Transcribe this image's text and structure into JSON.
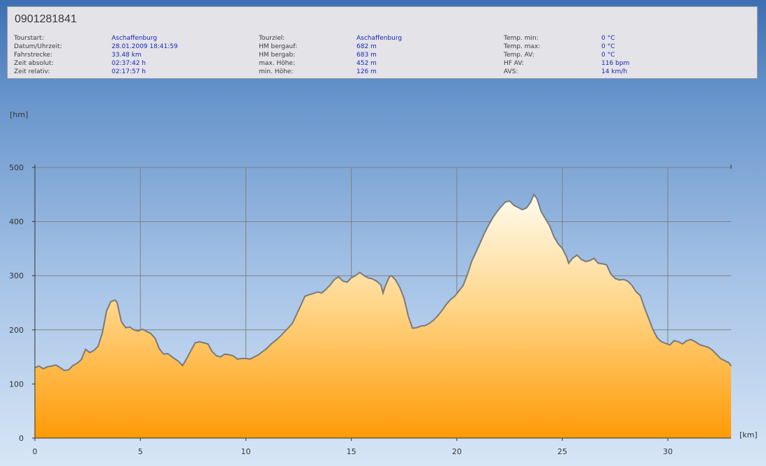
{
  "header": {
    "title": "0901281841",
    "columns": [
      [
        {
          "label": "Tourstart:",
          "value": "Aschaffenburg"
        },
        {
          "label": "Datum/Uhrzeit:",
          "value": "28.01.2009 18:41:59"
        },
        {
          "label": "Fahrstrecke:",
          "value": "33.48 km"
        },
        {
          "label": "Zeit absolut:",
          "value": "02:37:42 h"
        },
        {
          "label": "Zeit relativ:",
          "value": "02:17:57 h"
        }
      ],
      [
        {
          "label": "Tourziel:",
          "value": "Aschaffenburg"
        },
        {
          "label": "HM bergauf:",
          "value": "682 m"
        },
        {
          "label": "HM bergab:",
          "value": "683 m"
        },
        {
          "label": "max. Höhe:",
          "value": "452 m"
        },
        {
          "label": "min. Höhe:",
          "value": "126 m"
        }
      ],
      [
        {
          "label": "Temp. min:",
          "value": "0 °C"
        },
        {
          "label": "Temp. max:",
          "value": "0 °C"
        },
        {
          "label": "Temp. AV:",
          "value": "0 °C"
        },
        {
          "label": "HF AV:",
          "value": "116 bpm"
        },
        {
          "label": "AVS:",
          "value": "14 km/h"
        }
      ]
    ]
  },
  "chart_data": {
    "type": "area",
    "ylabel": "[hm]",
    "xlabel": "[km]",
    "xlim": [
      0,
      33
    ],
    "ylim": [
      0,
      500
    ],
    "xticks": [
      0,
      5,
      10,
      15,
      20,
      25,
      30
    ],
    "yticks": [
      0,
      100,
      200,
      300,
      400,
      500
    ],
    "grid": true,
    "colors": {
      "fill_top": "#fffbee",
      "fill_bottom": "#ff9a05",
      "line": "#7a7a7a",
      "grid": "#808080"
    },
    "points": [
      [
        0,
        130
      ],
      [
        0.2,
        133
      ],
      [
        0.4,
        128
      ],
      [
        0.6,
        132
      ],
      [
        0.8,
        133
      ],
      [
        1.0,
        135
      ],
      [
        1.2,
        130
      ],
      [
        1.4,
        125
      ],
      [
        1.6,
        126
      ],
      [
        1.8,
        134
      ],
      [
        2.0,
        138
      ],
      [
        2.2,
        145
      ],
      [
        2.4,
        164
      ],
      [
        2.6,
        158
      ],
      [
        2.8,
        162
      ],
      [
        3.0,
        170
      ],
      [
        3.2,
        195
      ],
      [
        3.4,
        235
      ],
      [
        3.6,
        252
      ],
      [
        3.8,
        255
      ],
      [
        3.9,
        250
      ],
      [
        4.1,
        215
      ],
      [
        4.3,
        204
      ],
      [
        4.5,
        205
      ],
      [
        4.7,
        200
      ],
      [
        4.9,
        198
      ],
      [
        5.1,
        201
      ],
      [
        5.3,
        197
      ],
      [
        5.5,
        193
      ],
      [
        5.7,
        184
      ],
      [
        5.9,
        165
      ],
      [
        6.1,
        155
      ],
      [
        6.3,
        156
      ],
      [
        6.5,
        150
      ],
      [
        6.8,
        142
      ],
      [
        7.0,
        134
      ],
      [
        7.2,
        147
      ],
      [
        7.4,
        162
      ],
      [
        7.6,
        176
      ],
      [
        7.8,
        178
      ],
      [
        8.0,
        176
      ],
      [
        8.2,
        174
      ],
      [
        8.4,
        160
      ],
      [
        8.6,
        152
      ],
      [
        8.8,
        150
      ],
      [
        9.0,
        155
      ],
      [
        9.2,
        154
      ],
      [
        9.4,
        152
      ],
      [
        9.6,
        146
      ],
      [
        9.8,
        147
      ],
      [
        10.0,
        147
      ],
      [
        10.2,
        146
      ],
      [
        10.4,
        150
      ],
      [
        10.6,
        154
      ],
      [
        10.8,
        160
      ],
      [
        11.0,
        166
      ],
      [
        11.2,
        174
      ],
      [
        11.4,
        180
      ],
      [
        11.6,
        187
      ],
      [
        11.8,
        195
      ],
      [
        12.0,
        203
      ],
      [
        12.2,
        212
      ],
      [
        12.4,
        228
      ],
      [
        12.6,
        245
      ],
      [
        12.8,
        262
      ],
      [
        13.0,
        265
      ],
      [
        13.2,
        267
      ],
      [
        13.4,
        270
      ],
      [
        13.6,
        268
      ],
      [
        13.8,
        275
      ],
      [
        14.0,
        283
      ],
      [
        14.2,
        293
      ],
      [
        14.4,
        298
      ],
      [
        14.6,
        290
      ],
      [
        14.8,
        288
      ],
      [
        15.0,
        296
      ],
      [
        15.2,
        300
      ],
      [
        15.4,
        306
      ],
      [
        15.6,
        300
      ],
      [
        15.8,
        296
      ],
      [
        16.0,
        294
      ],
      [
        16.2,
        290
      ],
      [
        16.4,
        283
      ],
      [
        16.5,
        268
      ],
      [
        16.6,
        280
      ],
      [
        16.8,
        298
      ],
      [
        16.9,
        300
      ],
      [
        17.1,
        292
      ],
      [
        17.3,
        278
      ],
      [
        17.5,
        258
      ],
      [
        17.7,
        225
      ],
      [
        17.9,
        203
      ],
      [
        18.1,
        204
      ],
      [
        18.3,
        207
      ],
      [
        18.5,
        208
      ],
      [
        18.7,
        212
      ],
      [
        18.9,
        218
      ],
      [
        19.1,
        226
      ],
      [
        19.3,
        236
      ],
      [
        19.5,
        247
      ],
      [
        19.7,
        256
      ],
      [
        19.9,
        262
      ],
      [
        20.1,
        272
      ],
      [
        20.3,
        282
      ],
      [
        20.5,
        302
      ],
      [
        20.7,
        326
      ],
      [
        20.9,
        343
      ],
      [
        21.1,
        360
      ],
      [
        21.3,
        378
      ],
      [
        21.5,
        393
      ],
      [
        21.7,
        407
      ],
      [
        21.9,
        418
      ],
      [
        22.1,
        428
      ],
      [
        22.3,
        436
      ],
      [
        22.5,
        438
      ],
      [
        22.7,
        430
      ],
      [
        22.9,
        426
      ],
      [
        23.1,
        422
      ],
      [
        23.3,
        425
      ],
      [
        23.5,
        436
      ],
      [
        23.65,
        450
      ],
      [
        23.8,
        442
      ],
      [
        24.0,
        418
      ],
      [
        24.2,
        405
      ],
      [
        24.4,
        392
      ],
      [
        24.6,
        372
      ],
      [
        24.8,
        359
      ],
      [
        25.0,
        350
      ],
      [
        25.2,
        335
      ],
      [
        25.3,
        323
      ],
      [
        25.5,
        333
      ],
      [
        25.7,
        338
      ],
      [
        25.9,
        330
      ],
      [
        26.1,
        326
      ],
      [
        26.3,
        328
      ],
      [
        26.5,
        332
      ],
      [
        26.7,
        323
      ],
      [
        26.9,
        322
      ],
      [
        27.1,
        320
      ],
      [
        27.3,
        303
      ],
      [
        27.5,
        295
      ],
      [
        27.7,
        292
      ],
      [
        27.9,
        293
      ],
      [
        28.1,
        290
      ],
      [
        28.3,
        282
      ],
      [
        28.5,
        270
      ],
      [
        28.7,
        263
      ],
      [
        28.9,
        240
      ],
      [
        29.1,
        220
      ],
      [
        29.3,
        200
      ],
      [
        29.5,
        185
      ],
      [
        29.7,
        178
      ],
      [
        29.9,
        175
      ],
      [
        30.1,
        172
      ],
      [
        30.3,
        180
      ],
      [
        30.5,
        178
      ],
      [
        30.7,
        174
      ],
      [
        30.9,
        180
      ],
      [
        31.1,
        182
      ],
      [
        31.3,
        178
      ],
      [
        31.5,
        173
      ],
      [
        31.7,
        170
      ],
      [
        31.9,
        168
      ],
      [
        32.1,
        163
      ],
      [
        32.3,
        155
      ],
      [
        32.5,
        147
      ],
      [
        32.7,
        143
      ],
      [
        32.9,
        139
      ],
      [
        33.0,
        133
      ]
    ]
  }
}
